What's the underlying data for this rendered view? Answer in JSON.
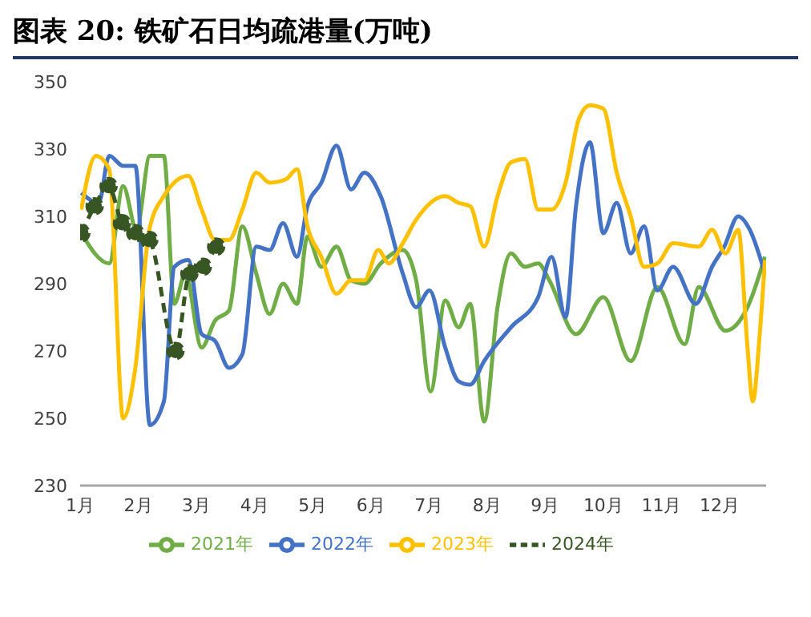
{
  "chart_data": {
    "type": "line",
    "title": "图表 20:  铁矿石日均疏港量(万吨)",
    "xlim": [
      1,
      12.8
    ],
    "xticks": [
      {
        "value": 1,
        "label": "1月"
      },
      {
        "value": 2,
        "label": "2月"
      },
      {
        "value": 3,
        "label": "3月"
      },
      {
        "value": 4,
        "label": "4月"
      },
      {
        "value": 5,
        "label": "5月"
      },
      {
        "value": 6,
        "label": "6月"
      },
      {
        "value": 7,
        "label": "7月"
      },
      {
        "value": 8,
        "label": "8月"
      },
      {
        "value": 9,
        "label": "9月"
      },
      {
        "value": 10,
        "label": "10月"
      },
      {
        "value": 11,
        "label": "11月"
      },
      {
        "value": 12,
        "label": "12月"
      }
    ],
    "ylim": [
      230,
      350
    ],
    "yticks": [
      230,
      250,
      270,
      290,
      310,
      330,
      350
    ],
    "grid": false,
    "legend": "bottom",
    "marker": "none",
    "line_style": "solid",
    "series": [
      {
        "name": "2021年",
        "color": "#70ad47",
        "x": [
          1.02,
          1.5,
          1.74,
          1.97,
          2.2,
          2.44,
          2.62,
          2.81,
          3.09,
          3.32,
          3.56,
          3.79,
          4.03,
          4.26,
          4.49,
          4.73,
          4.91,
          5.15,
          5.41,
          5.66,
          5.89,
          6.17,
          6.55,
          6.78,
          7.03,
          7.28,
          7.51,
          7.71,
          7.95,
          8.18,
          8.41,
          8.65,
          8.88,
          9.07,
          9.53,
          10.0,
          10.47,
          10.93,
          11.4,
          11.64,
          12.1,
          12.48,
          12.78
        ],
        "values": [
          305,
          296,
          319,
          306,
          328,
          328,
          284,
          293,
          271,
          279,
          282,
          307,
          293,
          281,
          290,
          284,
          304,
          295,
          301,
          291,
          290,
          296,
          300,
          291,
          258,
          285,
          277,
          284,
          249,
          283,
          299,
          295,
          296,
          291,
          275,
          286,
          267,
          289,
          272,
          289,
          276,
          283,
          298
        ]
      },
      {
        "name": "2022年",
        "color": "#4472c4",
        "x": [
          1.02,
          1.32,
          1.5,
          1.74,
          1.95,
          2.2,
          2.44,
          2.62,
          2.86,
          3.09,
          3.32,
          3.56,
          3.79,
          4.03,
          4.26,
          4.49,
          4.73,
          4.91,
          5.15,
          5.41,
          5.66,
          5.89,
          6.17,
          6.55,
          6.78,
          7.01,
          7.28,
          7.51,
          7.71,
          7.95,
          8.41,
          8.88,
          9.11,
          9.35,
          9.53,
          9.77,
          10.0,
          10.23,
          10.47,
          10.7,
          10.93,
          11.2,
          11.59,
          11.87,
          12.08,
          12.32,
          12.52,
          12.78
        ],
        "values": [
          317,
          314,
          328,
          325,
          325,
          248,
          255,
          295,
          297,
          275,
          273,
          265,
          269,
          301,
          300,
          308,
          298,
          313,
          320,
          331,
          318,
          323,
          316,
          293,
          283,
          288,
          271,
          261,
          260,
          267,
          277,
          286,
          298,
          280,
          313,
          332,
          305,
          314,
          299,
          307,
          288,
          295,
          284,
          295,
          301,
          310,
          306,
          293
        ]
      },
      {
        "name": "2023年",
        "color": "#ffc000",
        "x": [
          1.02,
          1.27,
          1.5,
          1.74,
          1.95,
          2.19,
          2.44,
          2.86,
          3.09,
          3.32,
          3.56,
          3.79,
          4.03,
          4.26,
          4.54,
          4.73,
          4.91,
          5.15,
          5.41,
          5.66,
          5.89,
          6.13,
          6.31,
          6.55,
          6.78,
          7.28,
          7.51,
          7.71,
          7.95,
          8.18,
          8.41,
          8.65,
          8.88,
          9.11,
          9.35,
          9.58,
          9.77,
          10.0,
          10.23,
          10.47,
          10.7,
          10.93,
          11.2,
          11.64,
          11.87,
          12.1,
          12.32,
          12.48,
          12.57,
          12.69,
          12.78
        ],
        "values": [
          312,
          328,
          324,
          250,
          265,
          306,
          316,
          322,
          312,
          303,
          303,
          312,
          323,
          320,
          321,
          324,
          307,
          298,
          287,
          291,
          291,
          300,
          296,
          302,
          309,
          316,
          314,
          313,
          301,
          316,
          326,
          327,
          312,
          312,
          320,
          339,
          343,
          342,
          323,
          310,
          295,
          296,
          302,
          301,
          306,
          299,
          306,
          271,
          255,
          275,
          297
        ]
      },
      {
        "name": "2024年",
        "color": "#375623",
        "marker": "circle",
        "line_style": "dashed",
        "x": [
          1.02,
          1.25,
          1.49,
          1.72,
          1.95,
          2.19,
          2.64,
          2.88,
          3.11,
          3.34
        ],
        "values": [
          305,
          313,
          319,
          308,
          305,
          303,
          270,
          293,
          295,
          301
        ]
      }
    ]
  }
}
